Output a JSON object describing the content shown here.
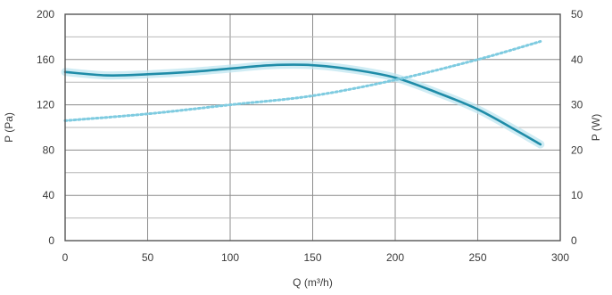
{
  "chart_data": {
    "type": "line",
    "title": "",
    "xlabel": "Q (m³/h)",
    "ylabel_left": "P (Pa)",
    "ylabel_right": "P (W)",
    "xlim": [
      0,
      300
    ],
    "ylim_left": [
      0,
      200
    ],
    "ylim_right": [
      0,
      50
    ],
    "x_ticks": [
      "0",
      "50",
      "100",
      "150",
      "200",
      "250",
      "300"
    ],
    "y_ticks_left": [
      "0",
      "40",
      "80",
      "120",
      "160",
      "200"
    ],
    "y_ticks_right": [
      "0",
      "10",
      "20",
      "30",
      "40",
      "50"
    ],
    "grid": true,
    "colors": {
      "pressure": "#1f8ca8",
      "pressure_band": "#bfe5f0",
      "power": "#7ecbe0",
      "grid_major": "#8c8c8c",
      "grid_minor": "#b8b8b8",
      "frame": "#555555"
    },
    "series": [
      {
        "axis": "left",
        "style": "solid",
        "x": [
          0,
          25,
          50,
          75,
          100,
          125,
          150,
          175,
          200,
          225,
          250,
          275,
          288
        ],
        "y": [
          149,
          146,
          147,
          149,
          152,
          155,
          155,
          151,
          144,
          131,
          116,
          96,
          85
        ]
      },
      {
        "axis": "right",
        "style": "dotted",
        "x": [
          0,
          50,
          100,
          150,
          200,
          250,
          288
        ],
        "y": [
          26.5,
          28,
          30,
          32,
          35.5,
          40,
          44
        ]
      }
    ]
  }
}
